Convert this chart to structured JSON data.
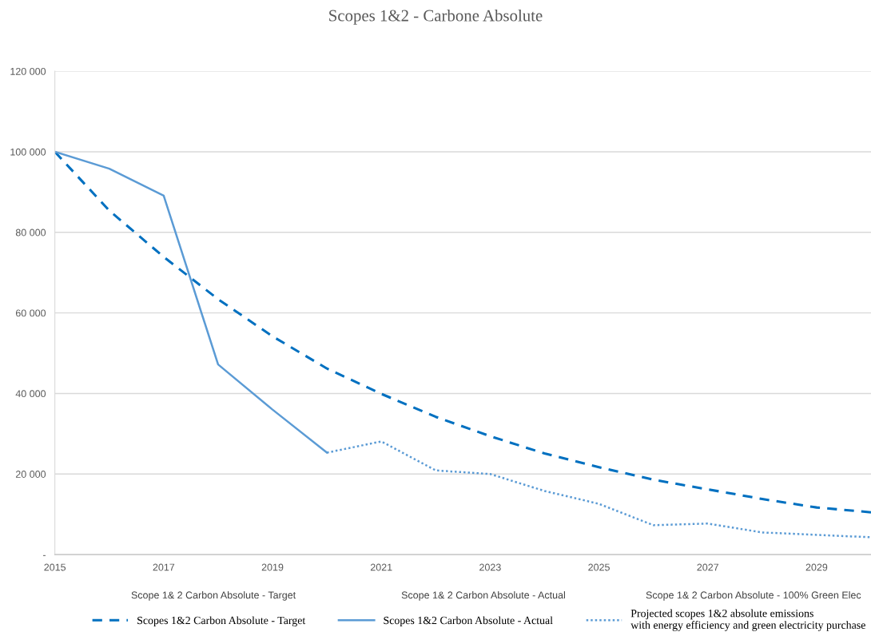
{
  "chart_data": {
    "type": "line",
    "title": "Scopes 1&2 - Carbone Absolute",
    "xlim": [
      2015,
      2030
    ],
    "xticks": [
      2015,
      2017,
      2019,
      2021,
      2023,
      2025,
      2027,
      2029
    ],
    "ylim": [
      0,
      120000
    ],
    "yticks": [
      {
        "value": 0,
        "label": "-"
      },
      {
        "value": 20000,
        "label": "20 000"
      },
      {
        "value": 40000,
        "label": "40 000"
      },
      {
        "value": 60000,
        "label": "60 000"
      },
      {
        "value": 80000,
        "label": "80 000"
      },
      {
        "value": 100000,
        "label": "100 000"
      },
      {
        "value": 120000,
        "label": "120 000"
      }
    ],
    "grid": "y",
    "legend": "bottom",
    "annotations": [
      "Scope 1& 2 Carbon Absolute - Target",
      "Scope 1& 2 Carbon Absolute - Actual",
      "Scope 1& 2 Carbon Absolute - 100% Green Elec"
    ],
    "series": [
      {
        "name": "Scopes 1&2 Carbon Absolute - Target",
        "color": "#0070c0",
        "line_style": "dashed",
        "x": [
          2015,
          2016,
          2017,
          2018,
          2019,
          2020,
          2021,
          2022,
          2023,
          2024,
          2025,
          2026,
          2027,
          2028,
          2029,
          2030
        ],
        "values": [
          100000,
          85400,
          73900,
          63400,
          54200,
          46200,
          39900,
          34200,
          29400,
          25100,
          21700,
          18600,
          16200,
          13800,
          11700,
          10500
        ]
      },
      {
        "name": "Scopes 1&2 Carbon Absolute - Actual",
        "color": "#5b9bd5",
        "line_style": "solid",
        "x": [
          2015,
          2016,
          2017,
          2018,
          2019,
          2020
        ],
        "values": [
          100000,
          95800,
          89100,
          47200,
          36000,
          25300
        ]
      },
      {
        "name": "Projected scopes 1&2 absolute emissions\nwith energy efficiency and green electricity purchase",
        "color": "#5b9bd5",
        "line_style": "dotted",
        "x": [
          2020,
          2021,
          2022,
          2023,
          2024,
          2025,
          2026,
          2027,
          2028,
          2029,
          2030
        ],
        "values": [
          25300,
          28100,
          20900,
          20000,
          15800,
          12600,
          7300,
          7700,
          5500,
          4900,
          4300
        ]
      }
    ]
  }
}
